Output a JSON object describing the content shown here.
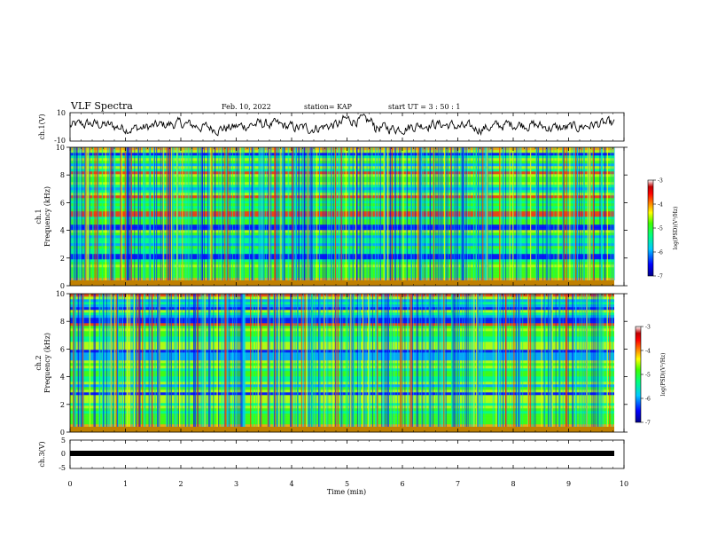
{
  "header": {
    "title": "VLF Spectra",
    "date": "Feb. 10, 2022",
    "station": "station= KAP",
    "start": "start  UT =   3  : 50 : 1"
  },
  "colors": {
    "colormap": [
      "#00008b",
      "#0000ff",
      "#00a0ff",
      "#00e0ff",
      "#00ff80",
      "#40ff00",
      "#c0ff00",
      "#ffff00",
      "#ffa000",
      "#ff3000",
      "#c00000",
      "#ffffff"
    ],
    "waveform": "#000000"
  },
  "chart_data": [
    {
      "type": "line",
      "panel": "ch1-waveform",
      "ylabel": "ch.1(V)",
      "ylim": [
        -10,
        10
      ],
      "yticks": [
        "10",
        "-10"
      ],
      "xlim": [
        0,
        10
      ],
      "note_values": "noisy waveform roughly between -3 and +5 V"
    },
    {
      "type": "heatmap",
      "panel": "ch1-spectrogram",
      "ylabel_channel": "ch.1",
      "ylabel": "Frequency (kHz)",
      "ylim": [
        0,
        10
      ],
      "yticks": [
        "0",
        "2",
        "4",
        "6",
        "8",
        "10"
      ],
      "xlim": [
        0,
        10
      ],
      "colorbar": {
        "label": "log(PSD)(V²/Hz)",
        "range": [
          -7,
          -3
        ],
        "ticks": [
          "-3",
          "-4",
          "-5",
          "-6",
          "-7"
        ]
      }
    },
    {
      "type": "heatmap",
      "panel": "ch2-spectrogram",
      "ylabel_channel": "ch.2",
      "ylabel": "Frequency (kHz)",
      "ylim": [
        0,
        10
      ],
      "yticks": [
        "0",
        "2",
        "4",
        "6",
        "8",
        "10"
      ],
      "xlim": [
        0,
        10
      ],
      "colorbar": {
        "label": "log(PSD)(V²/Hz)",
        "range": [
          -7,
          -3
        ],
        "ticks": [
          "-3",
          "-4",
          "-5",
          "-6",
          "-7"
        ]
      }
    },
    {
      "type": "line",
      "panel": "ch3-waveform",
      "ylabel": "ch.3(V)",
      "ylim": [
        -5,
        5
      ],
      "yticks": [
        "5",
        "0",
        "-5"
      ],
      "xlim": [
        0,
        10
      ],
      "xlabel": "Time (min)",
      "xticks": [
        "0",
        "1",
        "2",
        "3",
        "4",
        "5",
        "6",
        "7",
        "8",
        "9",
        "10"
      ],
      "note_values": "flat band near -1 V"
    }
  ]
}
